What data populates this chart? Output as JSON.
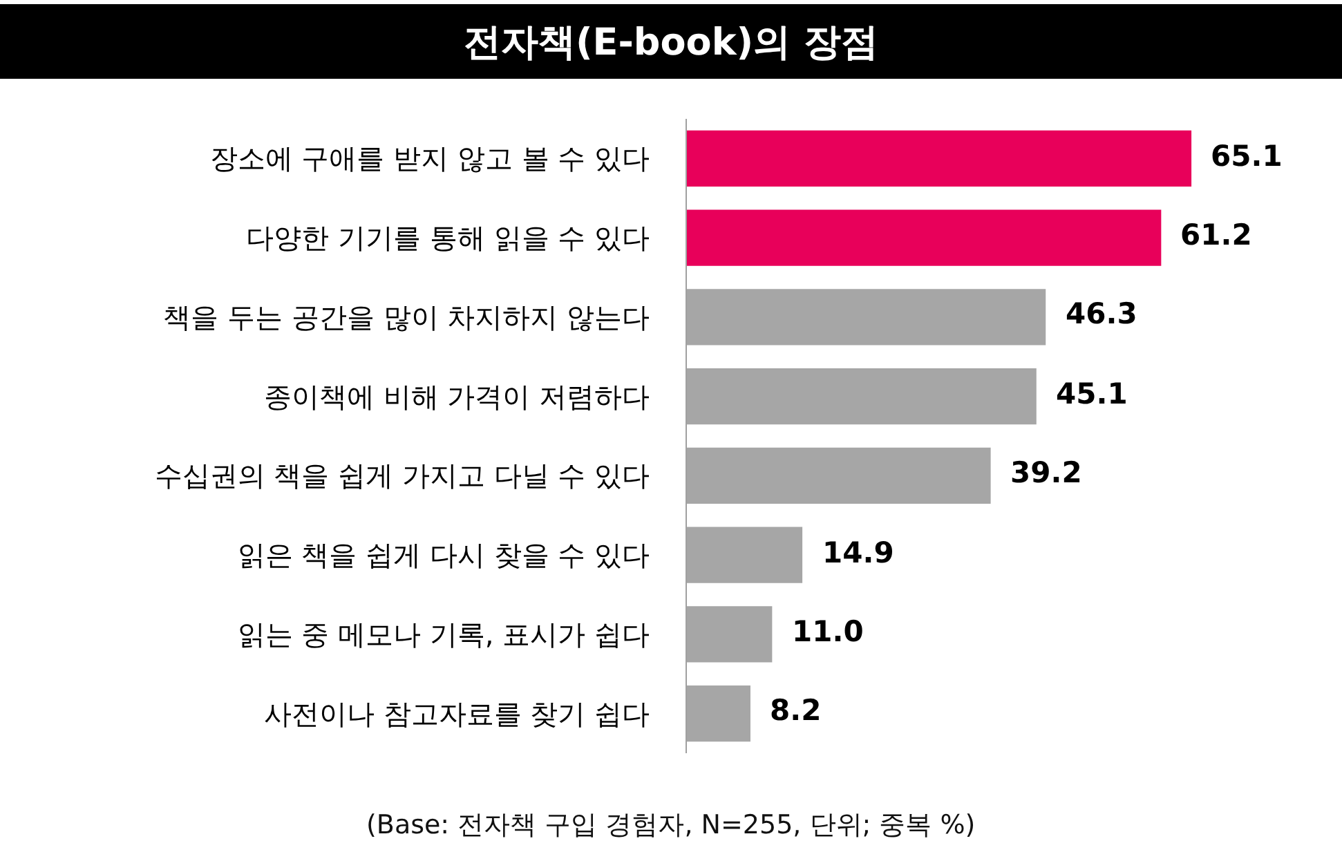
{
  "chart_data": {
    "type": "bar",
    "orientation": "horizontal",
    "title": "전자책(E-book)의 장점",
    "categories": [
      "장소에 구애를 받지 않고 볼 수 있다",
      "다양한 기기를 통해 읽을 수 있다",
      "책을 두는 공간을 많이 차지하지 않는다",
      "종이책에 비해 가격이 저렴하다",
      "수십권의 책을 쉽게 가지고 다닐 수 있다",
      "읽은 책을 쉽게 다시 찾을 수 있다",
      "읽는 중 메모나 기록, 표시가 쉽다",
      "사전이나 참고자료를 찾기 쉽다"
    ],
    "values": [
      65.1,
      61.2,
      46.3,
      45.1,
      39.2,
      14.9,
      11.0,
      8.2
    ],
    "value_labels": [
      "65.1",
      "61.2",
      "46.3",
      "45.1",
      "39.2",
      "14.9",
      "11.0",
      "8.2"
    ],
    "colors": [
      "#e8005a",
      "#e8005a",
      "#a6a6a6",
      "#a6a6a6",
      "#a6a6a6",
      "#a6a6a6",
      "#a6a6a6",
      "#a6a6a6"
    ],
    "tick_labels": "y",
    "annotations": [
      "(Base: 전자책 구입 경험자, N=255, 단위; 중복 %)"
    ]
  }
}
